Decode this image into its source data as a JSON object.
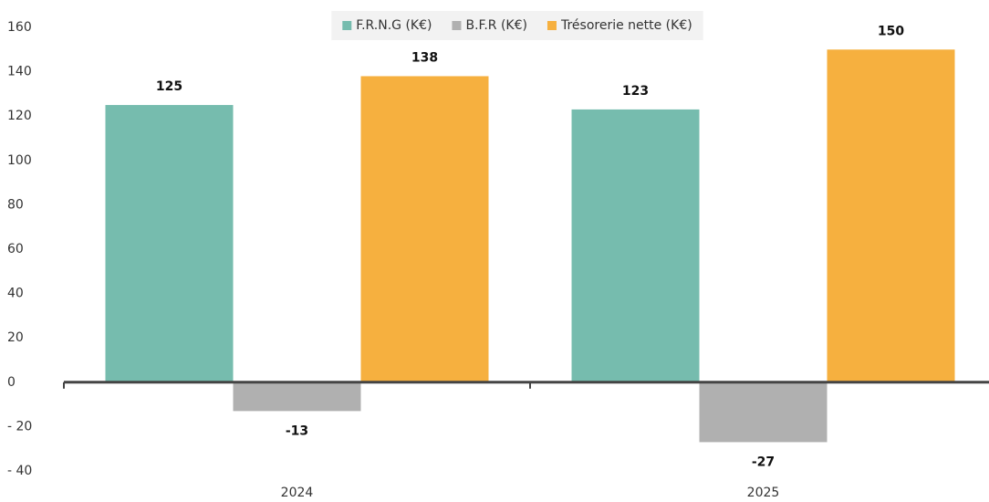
{
  "chart_data": {
    "type": "bar",
    "categories": [
      "2024",
      "2025"
    ],
    "series": [
      {
        "name": "F.R.N.G (K€)",
        "color": "#76bcae",
        "values": [
          125,
          123
        ]
      },
      {
        "name": "B.F.R (K€)",
        "color": "#b0b0b0",
        "values": [
          -13,
          -27
        ]
      },
      {
        "name": "Trésorerie nette (K€)",
        "color": "#f6b03f",
        "values": [
          138,
          150
        ]
      }
    ],
    "ylim": [
      -40,
      160
    ],
    "yticks": [
      {
        "value": -40,
        "label": "- 40"
      },
      {
        "value": -20,
        "label": "- 20"
      },
      0,
      20,
      40,
      60,
      80,
      100,
      120,
      140,
      160
    ],
    "legend": "top"
  }
}
